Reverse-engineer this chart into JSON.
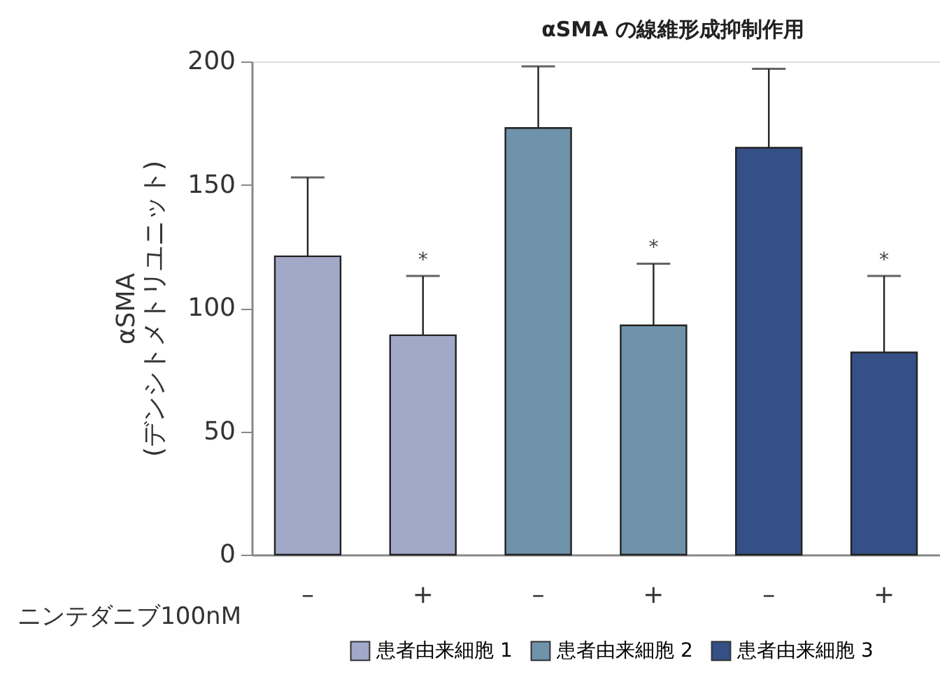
{
  "chart_data": {
    "type": "bar",
    "title": "αSMA の線維形成抑制作用",
    "xlabel": "ニンテダニブ100nM",
    "ylabel": "αSMA\n(デンシトメトリユニット)",
    "categories": [
      "–",
      "+",
      "–",
      "+",
      "–",
      "+"
    ],
    "series": [
      {
        "name": "患者由来細胞 1",
        "color": "#a2a8c8",
        "values": [
          121,
          89,
          null,
          null,
          null,
          null
        ],
        "errors": [
          [
            121,
            153
          ],
          [
            89,
            113
          ],
          null,
          null,
          null,
          null
        ]
      },
      {
        "name": "患者由来細胞 2",
        "color": "#6f93ab",
        "values": [
          null,
          null,
          173,
          93,
          null,
          null
        ],
        "errors": [
          null,
          null,
          [
            173,
            198
          ],
          [
            93,
            118
          ],
          null,
          null
        ]
      },
      {
        "name": "患者由来細胞 3",
        "color": "#345086",
        "values": [
          null,
          null,
          null,
          null,
          165,
          82
        ],
        "errors": [
          null,
          null,
          null,
          null,
          [
            165,
            197
          ],
          [
            82,
            113
          ]
        ]
      }
    ],
    "annotations": [
      "*",
      "*",
      "*"
    ],
    "ylim": [
      0,
      200
    ],
    "yticks": [
      0,
      50,
      100,
      150,
      200
    ],
    "grid": false,
    "legend": "bottom"
  }
}
